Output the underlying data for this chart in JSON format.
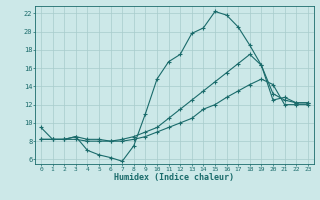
{
  "xlabel": "Humidex (Indice chaleur)",
  "background_color": "#cce8e8",
  "grid_color": "#a8cccc",
  "line_color": "#1a6b6b",
  "xlim": [
    -0.5,
    23.5
  ],
  "ylim": [
    5.5,
    22.8
  ],
  "xticks": [
    0,
    1,
    2,
    3,
    4,
    5,
    6,
    7,
    8,
    9,
    10,
    11,
    12,
    13,
    14,
    15,
    16,
    17,
    18,
    19,
    20,
    21,
    22,
    23
  ],
  "yticks": [
    6,
    8,
    10,
    12,
    14,
    16,
    18,
    20,
    22
  ],
  "line1_x": [
    0,
    1,
    2,
    3,
    4,
    5,
    6,
    7,
    8,
    9,
    10,
    11,
    12,
    13,
    14,
    15,
    16,
    17,
    18,
    19,
    20,
    21,
    22,
    23
  ],
  "line1_y": [
    9.5,
    8.2,
    8.2,
    8.5,
    7.0,
    6.5,
    6.2,
    5.8,
    7.5,
    11.0,
    14.8,
    16.7,
    17.5,
    19.8,
    20.4,
    22.2,
    21.8,
    20.5,
    18.5,
    16.3,
    12.5,
    12.8,
    12.2,
    12.2
  ],
  "line2_x": [
    0,
    1,
    2,
    3,
    4,
    5,
    6,
    7,
    8,
    9,
    10,
    11,
    12,
    13,
    14,
    15,
    16,
    17,
    18,
    19,
    20,
    21,
    22,
    23
  ],
  "line2_y": [
    8.2,
    8.2,
    8.2,
    8.5,
    8.2,
    8.2,
    8.0,
    8.2,
    8.5,
    9.0,
    9.5,
    10.5,
    11.5,
    12.5,
    13.5,
    14.5,
    15.5,
    16.5,
    17.5,
    16.3,
    13.2,
    12.5,
    12.2,
    12.2
  ],
  "line3_x": [
    0,
    1,
    2,
    3,
    4,
    5,
    6,
    7,
    8,
    9,
    10,
    11,
    12,
    13,
    14,
    15,
    16,
    17,
    18,
    19,
    20,
    21,
    22,
    23
  ],
  "line3_y": [
    8.2,
    8.2,
    8.2,
    8.2,
    8.0,
    8.0,
    8.0,
    8.0,
    8.2,
    8.5,
    9.0,
    9.5,
    10.0,
    10.5,
    11.5,
    12.0,
    12.8,
    13.5,
    14.2,
    14.8,
    14.2,
    12.0,
    12.0,
    12.0
  ]
}
